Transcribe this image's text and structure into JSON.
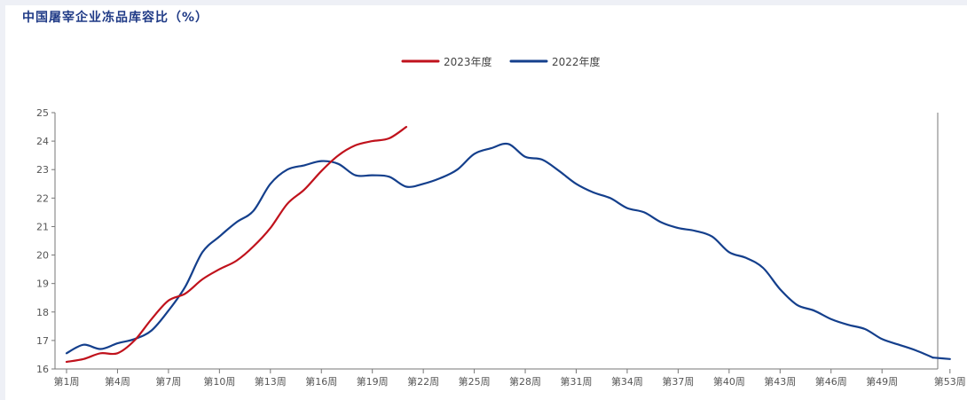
{
  "title": "中国屠宰企业冻品库容比（%）",
  "colors": {
    "series_2023": "#c0121c",
    "series_2022": "#143f8c",
    "axis": "#666666",
    "title": "#1f3a86"
  },
  "chart_data": {
    "type": "line",
    "title": "中国屠宰企业冻品库容比（%）",
    "xlabel": "",
    "ylabel": "",
    "ylim": [
      16,
      25
    ],
    "yticks": [
      16,
      17,
      18,
      19,
      20,
      21,
      22,
      23,
      24,
      25
    ],
    "xlim": [
      1,
      53
    ],
    "xtick_labels": [
      "第1周",
      "第4周",
      "第7周",
      "第10周",
      "第13周",
      "第16周",
      "第19周",
      "第22周",
      "第25周",
      "第28周",
      "第31周",
      "第34周",
      "第37周",
      "第40周",
      "第43周",
      "第46周",
      "第49周",
      "第53周"
    ],
    "xtick_weeks": [
      1,
      4,
      7,
      10,
      13,
      16,
      19,
      22,
      25,
      28,
      31,
      34,
      37,
      40,
      43,
      46,
      49,
      53
    ],
    "legend_position": "top-center",
    "grid": false,
    "series": [
      {
        "name": "2023年度",
        "color": "#c0121c",
        "x": [
          1,
          2,
          3,
          4,
          5,
          6,
          7,
          8,
          9,
          10,
          11,
          12,
          13,
          14,
          15,
          16,
          17,
          18,
          19,
          20,
          21
        ],
        "values": [
          16.25,
          16.35,
          16.55,
          16.55,
          17.0,
          17.75,
          18.4,
          18.65,
          19.15,
          19.5,
          19.8,
          20.3,
          20.95,
          21.8,
          22.3,
          22.95,
          23.5,
          23.85,
          24.0,
          24.1,
          24.5
        ]
      },
      {
        "name": "2022年度",
        "color": "#143f8c",
        "x": [
          1,
          2,
          3,
          4,
          5,
          6,
          7,
          8,
          9,
          10,
          11,
          12,
          13,
          14,
          15,
          16,
          17,
          18,
          19,
          20,
          21,
          22,
          23,
          24,
          25,
          26,
          27,
          28,
          29,
          30,
          31,
          32,
          33,
          34,
          35,
          36,
          37,
          38,
          39,
          40,
          41,
          42,
          43,
          44,
          45,
          46,
          47,
          48,
          49,
          50,
          51,
          52
        ],
        "values": [
          16.55,
          16.85,
          16.7,
          16.9,
          17.05,
          17.35,
          18.05,
          18.9,
          20.1,
          20.65,
          21.15,
          21.55,
          22.5,
          23.0,
          23.15,
          23.3,
          23.2,
          22.8,
          22.8,
          22.75,
          22.4,
          22.5,
          22.7,
          23.0,
          23.55,
          23.75,
          23.9,
          23.45,
          23.35,
          22.95,
          22.5,
          22.2,
          22.0,
          21.65,
          21.5,
          21.15,
          20.95,
          20.85,
          20.65,
          20.1,
          19.9,
          19.55,
          18.8,
          18.25,
          18.05,
          17.75,
          17.55,
          17.4,
          17.05,
          16.85,
          16.65,
          16.4
        ]
      },
      {
        "name": "2022年度",
        "color": "#143f8c",
        "x": [
          52,
          53
        ],
        "values": [
          16.4,
          16.35
        ]
      }
    ]
  }
}
